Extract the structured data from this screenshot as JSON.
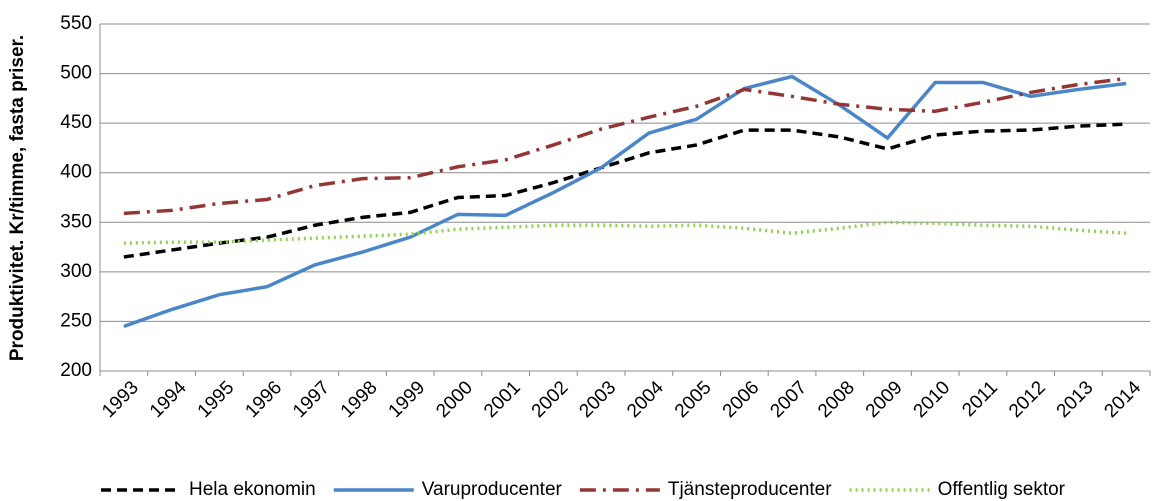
{
  "chart_data": {
    "type": "line",
    "y_label": "Produktivitet. Kr/timme, fasta priser.",
    "categories": [
      "1993",
      "1994",
      "1995",
      "1996",
      "1997",
      "1998",
      "1999",
      "2000",
      "2001",
      "2002",
      "2003",
      "2004",
      "2005",
      "2006",
      "2007",
      "2008",
      "2009",
      "2010",
      "2011",
      "2012",
      "2013",
      "2014"
    ],
    "series": [
      {
        "name": "Hela ekonomin",
        "color": "#000000",
        "line_style": "dashed",
        "values": [
          315,
          322,
          329,
          335,
          347,
          355,
          360,
          375,
          377,
          390,
          405,
          420,
          428,
          443,
          443,
          436,
          424,
          438,
          442,
          443,
          447,
          449
        ]
      },
      {
        "name": "Varuproducenter",
        "color": "#4a86c8",
        "line_style": "solid",
        "values": [
          245,
          262,
          277,
          285,
          307,
          320,
          335,
          358,
          357,
          380,
          405,
          440,
          454,
          485,
          497,
          468,
          435,
          491,
          491,
          477,
          484,
          490
        ]
      },
      {
        "name": "Tjänsteproducenter",
        "color": "#943634",
        "line_style": "dashdot",
        "values": [
          359,
          362,
          369,
          373,
          387,
          394,
          395,
          406,
          413,
          428,
          444,
          456,
          467,
          484,
          477,
          469,
          464,
          462,
          471,
          481,
          489,
          495
        ]
      },
      {
        "name": "Offentlig sektor",
        "color": "#92d050",
        "line_style": "dotted",
        "values": [
          329,
          330,
          330,
          332,
          334,
          336,
          338,
          343,
          345,
          347,
          347,
          346,
          347,
          344,
          339,
          344,
          350,
          349,
          347,
          346,
          342,
          339
        ]
      }
    ],
    "ylim": [
      200,
      550
    ],
    "yticks": [
      200,
      250,
      300,
      350,
      400,
      450,
      500,
      550
    ],
    "grid": true,
    "legend": "bottom"
  }
}
